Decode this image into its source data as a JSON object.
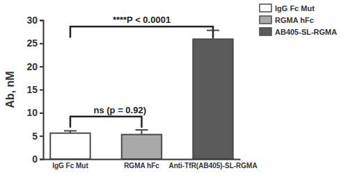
{
  "chart_data": {
    "type": "bar",
    "y_label": "Ab, nM",
    "categories": [
      "IgG Fc Mut",
      "RGMA hFc",
      "Anti-TfR(AB405)-SL-RGMA"
    ],
    "series": [
      {
        "name": "IgG Fc Mut",
        "color": "#ffffff",
        "values": [
          5.6,
          null,
          null
        ],
        "errors": [
          0.5,
          null,
          null
        ]
      },
      {
        "name": "RGMA hFc",
        "color": "#a9a9a9",
        "values": [
          null,
          5.3,
          null
        ],
        "errors": [
          null,
          1.0,
          null
        ]
      },
      {
        "name": "AB405-SL-RGMA",
        "color": "#5a5a5a",
        "values": [
          null,
          null,
          25.9
        ],
        "errors": [
          null,
          null,
          1.9
        ]
      }
    ],
    "ylim": [
      0,
      30
    ],
    "yticks": [
      0,
      5,
      10,
      15,
      20,
      25,
      30
    ],
    "grid": false,
    "legend": "top-right",
    "annotations": [
      {
        "text": "****P < 0.0001",
        "from": 0,
        "to": 2,
        "y": 28.6
      },
      {
        "text": "ns (p = 0.92)",
        "from": 0,
        "to": 1,
        "y": 9.2
      }
    ]
  }
}
